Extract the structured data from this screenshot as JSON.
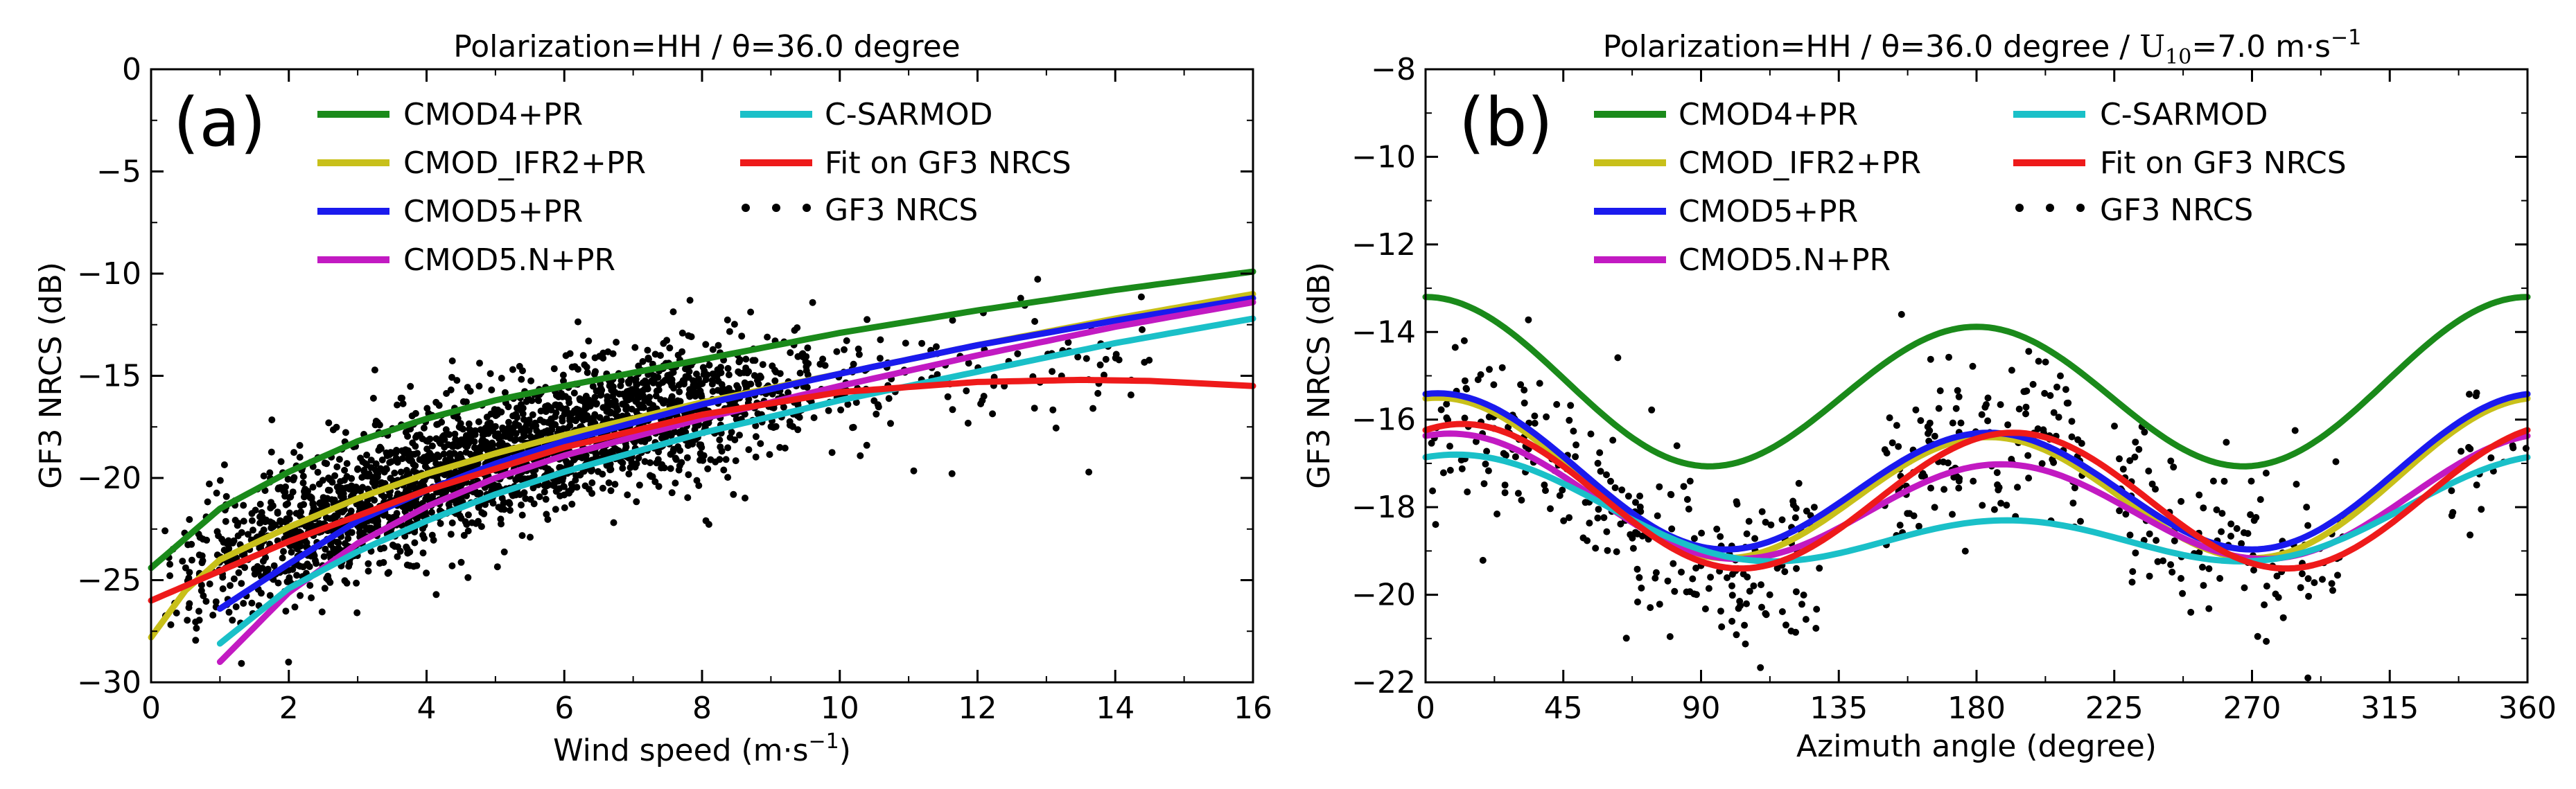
{
  "chart_data": [
    {
      "type": "line",
      "panel_label": "(a)",
      "title": "Polarization=HH / θ=36.0 degree",
      "xlabel": "Wind speed (m·s",
      "xlabel_sup": "−1",
      "xlabel_close": ")",
      "ylabel": "GF3 NRCS (dB)",
      "xlim": [
        0,
        16
      ],
      "ylim": [
        -30,
        0
      ],
      "xticks": [
        0,
        2,
        4,
        6,
        8,
        10,
        12,
        14,
        16
      ],
      "xtick_labels": [
        "0",
        "2",
        "4",
        "6",
        "8",
        "10",
        "12",
        "14",
        "16"
      ],
      "yticks": [
        0,
        -5,
        -10,
        -15,
        -20,
        -25,
        -30
      ],
      "ytick_labels": [
        "0",
        "−5",
        "−10",
        "−15",
        "−20",
        "−25",
        "−30"
      ],
      "legend_position": "top-left",
      "series": [
        {
          "name": "CMOD4+PR",
          "color": "#1a8a1a",
          "x": [
            0,
            1,
            2,
            3,
            4,
            5,
            6,
            8,
            10,
            12,
            14,
            16
          ],
          "y": [
            -24.4,
            -21.5,
            -19.7,
            -18.2,
            -17.1,
            -16.2,
            -15.5,
            -14.2,
            -12.9,
            -11.8,
            -10.8,
            -9.9
          ]
        },
        {
          "name": "CMOD_IFR2+PR",
          "color": "#c8c01a",
          "x": [
            0,
            0.5,
            1,
            2,
            3,
            4,
            5,
            6,
            8,
            10,
            12,
            14,
            16
          ],
          "y": [
            -27.8,
            -25.5,
            -24.0,
            -22.4,
            -21.0,
            -19.8,
            -18.8,
            -17.9,
            -16.3,
            -14.9,
            -13.5,
            -12.2,
            -11.0
          ]
        },
        {
          "name": "CMOD5+PR",
          "color": "#1a1aee",
          "x": [
            1,
            2,
            3,
            4,
            5,
            6,
            8,
            10,
            12,
            14,
            16
          ],
          "y": [
            -26.4,
            -24.2,
            -22.1,
            -20.6,
            -19.3,
            -18.2,
            -16.4,
            -14.9,
            -13.5,
            -12.3,
            -11.2
          ]
        },
        {
          "name": "CMOD5.N+PR",
          "color": "#c21ac2",
          "x": [
            1,
            2,
            3,
            4,
            5,
            6,
            8,
            10,
            12,
            14,
            16
          ],
          "y": [
            -29.0,
            -25.6,
            -23.2,
            -21.4,
            -20.0,
            -18.9,
            -17.1,
            -15.5,
            -14.0,
            -12.6,
            -11.4
          ]
        },
        {
          "name": "C-SARMOD",
          "color": "#1ac0c8",
          "x": [
            1,
            2,
            3,
            4,
            5,
            6,
            8,
            10,
            12,
            14,
            16
          ],
          "y": [
            -28.1,
            -25.4,
            -23.6,
            -22.1,
            -20.8,
            -19.7,
            -17.8,
            -16.2,
            -14.8,
            -13.4,
            -12.2
          ]
        },
        {
          "name": "Fit on GF3 NRCS",
          "color": "#ee1a1a",
          "x": [
            0,
            2,
            4,
            6,
            8,
            10,
            12,
            13.5,
            14.5,
            16
          ],
          "y": [
            -26.0,
            -23.1,
            -20.6,
            -18.5,
            -16.9,
            -15.8,
            -15.3,
            -15.2,
            -15.25,
            -15.5
          ]
        }
      ],
      "scatter": {
        "name": "GF3 NRCS",
        "color": "#000000",
        "note": "dense point cloud around the fit curve, spread about ±3 dB, x from 0 to 16"
      }
    },
    {
      "type": "line",
      "panel_label": "(b)",
      "title": "Polarization=HH / θ=36.0 degree / ",
      "title_u": "U",
      "title_sub": "10",
      "title_rest": "=7.0 m·s",
      "title_sup": "−1",
      "xlabel": "Azimuth angle (degree)",
      "ylabel": "GF3 NRCS (dB)",
      "xlim": [
        0,
        360
      ],
      "ylim": [
        -22,
        -8
      ],
      "xticks": [
        0,
        45,
        90,
        135,
        180,
        225,
        270,
        315,
        360
      ],
      "xtick_labels": [
        "0",
        "45",
        "90",
        "135",
        "180",
        "225",
        "270",
        "315",
        "360"
      ],
      "yticks": [
        -8,
        -10,
        -12,
        -14,
        -16,
        -18,
        -20,
        -22
      ],
      "ytick_labels": [
        "−8",
        "−10",
        "−12",
        "−14",
        "−16",
        "−18",
        "−20",
        "−22"
      ],
      "legend_position": "top-left",
      "series": [
        {
          "name": "CMOD4+PR",
          "color": "#1a8a1a",
          "model": "cos2",
          "A0": -15.3,
          "A1": 0.34,
          "A2": 1.76,
          "phase": 0
        },
        {
          "name": "CMOD_IFR2+PR",
          "color": "#c8c01a",
          "model": "cos2",
          "A0": -17.55,
          "A1": 0.45,
          "A2": 1.6,
          "phase": 4
        },
        {
          "name": "CMOD5+PR",
          "color": "#1a1aee",
          "model": "cos2",
          "A0": -17.4,
          "A1": 0.45,
          "A2": 1.55,
          "phase": 4
        },
        {
          "name": "CMOD5.N+PR",
          "color": "#c21ac2",
          "model": "cos2",
          "A0": -17.92,
          "A1": 0.35,
          "A2": 1.25,
          "phase": 8
        },
        {
          "name": "C-SARMOD",
          "color": "#1ac0c8",
          "model": "cos2",
          "A0": -18.35,
          "A1": 0.75,
          "A2": 0.8,
          "phase": 10
        },
        {
          "name": "Fit on GF3 NRCS",
          "color": "#ee1a1a",
          "model": "cos2",
          "A0": -17.8,
          "A1": 0.1,
          "A2": 1.6,
          "phase": 12
        }
      ],
      "scatter": {
        "name": "GF3 NRCS",
        "color": "#000000",
        "note": "points concentrated around 0–130, 150–215 and 225–300 degree, spread about ±1.5 dB"
      }
    }
  ]
}
